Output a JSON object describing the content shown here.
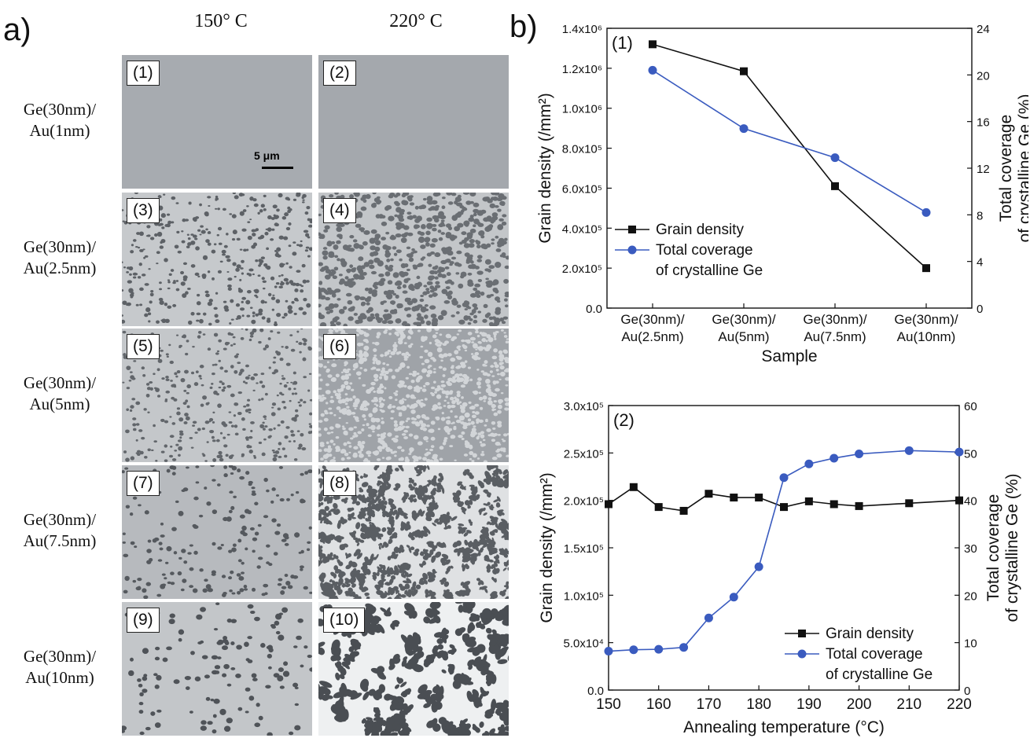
{
  "panel_a": {
    "letter": "a)",
    "columns": [
      "150° C",
      "220° C"
    ],
    "rows": [
      {
        "label_line1": "Ge(30nm)/",
        "label_line2": "Au(1nm)"
      },
      {
        "label_line1": "Ge(30nm)/",
        "label_line2": "Au(2.5nm)"
      },
      {
        "label_line1": "Ge(30nm)/",
        "label_line2": "Au(5nm)"
      },
      {
        "label_line1": "Ge(30nm)/",
        "label_line2": "Au(7.5nm)"
      },
      {
        "label_line1": "Ge(30nm)/",
        "label_line2": "Au(10nm)"
      }
    ],
    "tiles": [
      "(1)",
      "(2)",
      "(3)",
      "(4)",
      "(5)",
      "(6)",
      "(7)",
      "(8)",
      "(9)",
      "(10)"
    ],
    "scale_bar": "5 μm"
  },
  "panel_b": {
    "letter": "b)"
  },
  "chart_data": [
    {
      "type": "line",
      "panel_label": "(1)",
      "categories_line1": [
        "Ge(30nm)/",
        "Ge(30nm)/",
        "Ge(30nm)/",
        "Ge(30nm)/"
      ],
      "categories_line2": [
        "Au(2.5nm)",
        "Au(5nm)",
        "Au(7.5nm)",
        "Au(10nm)"
      ],
      "xlabel": "Sample",
      "ylabel_left": "Grain density (/mm²)",
      "ylabel_right_line1": "Total coverage",
      "ylabel_right_line2": "of crystalline Ge (%)",
      "ylim_left": [
        0,
        1400000
      ],
      "yticks_left": [
        "0.0",
        "2.0x10⁵",
        "4.0x10⁵",
        "6.0x10⁵",
        "8.0x10⁵",
        "1.0x10⁶",
        "1.2x10⁶",
        "1.4x10⁶"
      ],
      "ylim_right": [
        0,
        24
      ],
      "yticks_right": [
        "0",
        "4",
        "8",
        "12",
        "16",
        "20",
        "24"
      ],
      "series": [
        {
          "name": "Grain density",
          "axis": "left",
          "color": "#111111",
          "marker": "square",
          "values": [
            1320000,
            1185000,
            610000,
            200000
          ]
        },
        {
          "name": "Total coverage",
          "name_line2": "of crystalline Ge",
          "axis": "right",
          "color": "#3a5bbf",
          "marker": "circle",
          "values": [
            20.4,
            15.4,
            12.9,
            8.2
          ]
        }
      ],
      "legend": "lower-left"
    },
    {
      "type": "line",
      "panel_label": "(2)",
      "x": [
        150,
        155,
        160,
        165,
        170,
        175,
        180,
        185,
        190,
        195,
        200,
        210,
        220
      ],
      "xlabel": "Annealing temperature (°C)",
      "xlim": [
        150,
        220
      ],
      "xticks": [
        150,
        160,
        170,
        180,
        190,
        200,
        210,
        220
      ],
      "ylabel_left": "Grain density (/mm²)",
      "ylabel_right_line1": "Total coverage",
      "ylabel_right_line2": "of crystalline Ge (%)",
      "ylim_left": [
        0,
        300000
      ],
      "yticks_left": [
        "0.0",
        "5.0x10⁴",
        "1.0x10⁵",
        "1.5x10⁵",
        "2.0x10⁵",
        "2.5x10⁵",
        "3.0x10⁵"
      ],
      "ylim_right": [
        0,
        60
      ],
      "yticks_right": [
        "0",
        "10",
        "20",
        "30",
        "40",
        "50",
        "60"
      ],
      "series": [
        {
          "name": "Grain density",
          "axis": "left",
          "color": "#111111",
          "marker": "square",
          "values": [
            196000,
            214000,
            193000,
            189000,
            207000,
            203000,
            203000,
            193000,
            199000,
            196000,
            194000,
            197000,
            200000
          ]
        },
        {
          "name": "Total coverage",
          "name_line2": "of crystalline Ge",
          "axis": "right",
          "color": "#3a5bbf",
          "marker": "circle",
          "values": [
            8.2,
            8.5,
            8.6,
            9.0,
            15.2,
            19.6,
            26.0,
            44.8,
            47.7,
            48.9,
            49.8,
            50.5,
            50.2
          ]
        }
      ],
      "legend": "lower-right"
    }
  ]
}
